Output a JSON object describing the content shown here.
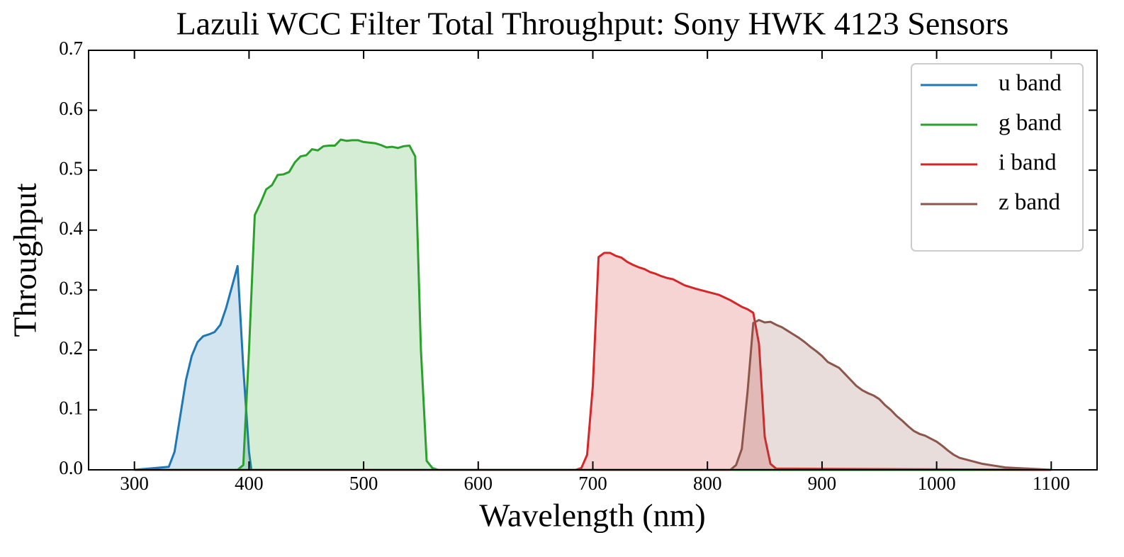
{
  "chart_data": {
    "type": "line",
    "title": "Lazuli WCC Filter Total Throughput: Sony HWK 4123 Sensors",
    "x_label": "Wavelength (nm)",
    "y_label": "Throughput",
    "xlim": [
      260,
      1140
    ],
    "ylim": [
      0,
      0.7
    ],
    "xticks": [
      300,
      400,
      500,
      600,
      700,
      800,
      900,
      1000,
      1100
    ],
    "yticks": [
      {
        "value": 0,
        "label": "0.0"
      },
      0.1,
      0.2,
      0.3,
      0.4,
      0.5,
      0.6,
      0.7
    ],
    "fill": true,
    "legend": "upper right",
    "series": [
      {
        "name": "u band",
        "color": "#1f77b4",
        "x": [
          300,
          330,
          335,
          340,
          345,
          350,
          355,
          360,
          365,
          370,
          375,
          380,
          385,
          390,
          395,
          400,
          402
        ],
        "values": [
          0,
          0.005,
          0.03,
          0.09,
          0.15,
          0.19,
          0.213,
          0.223,
          0.226,
          0.23,
          0.242,
          0.27,
          0.305,
          0.34,
          0.17,
          0.03,
          0
        ]
      },
      {
        "name": "g band",
        "color": "#2ca02c",
        "x": [
          300,
          390,
          395,
          400,
          405,
          410,
          415,
          420,
          425,
          430,
          435,
          440,
          445,
          450,
          455,
          460,
          465,
          470,
          475,
          480,
          485,
          490,
          495,
          500,
          505,
          510,
          515,
          520,
          525,
          530,
          535,
          540,
          545,
          550,
          555,
          560,
          565,
          1100
        ],
        "values": [
          0,
          0,
          0.008,
          0.2,
          0.425,
          0.445,
          0.468,
          0.475,
          0.492,
          0.493,
          0.497,
          0.513,
          0.523,
          0.525,
          0.535,
          0.533,
          0.54,
          0.541,
          0.541,
          0.551,
          0.549,
          0.55,
          0.55,
          0.547,
          0.546,
          0.545,
          0.542,
          0.538,
          0.539,
          0.537,
          0.54,
          0.541,
          0.523,
          0.2,
          0.015,
          0.003,
          0,
          0
        ]
      },
      {
        "name": "i band",
        "color": "#d62728",
        "x": [
          300,
          685,
          690,
          695,
          700,
          705,
          710,
          715,
          720,
          725,
          730,
          735,
          740,
          745,
          750,
          755,
          760,
          765,
          770,
          775,
          780,
          790,
          800,
          810,
          820,
          830,
          835,
          840,
          845,
          850,
          855,
          860,
          1100
        ],
        "values": [
          0,
          0,
          0.003,
          0.025,
          0.14,
          0.355,
          0.362,
          0.362,
          0.357,
          0.354,
          0.347,
          0.342,
          0.338,
          0.335,
          0.33,
          0.327,
          0.323,
          0.32,
          0.318,
          0.313,
          0.308,
          0.302,
          0.297,
          0.292,
          0.283,
          0.272,
          0.268,
          0.262,
          0.21,
          0.055,
          0.01,
          0.002,
          0
        ]
      },
      {
        "name": "z band",
        "color": "#8c564b",
        "x": [
          300,
          820,
          825,
          830,
          835,
          840,
          845,
          850,
          855,
          860,
          865,
          870,
          875,
          880,
          885,
          890,
          895,
          900,
          905,
          910,
          915,
          920,
          925,
          930,
          935,
          940,
          945,
          950,
          955,
          960,
          965,
          970,
          975,
          980,
          985,
          990,
          995,
          1000,
          1005,
          1010,
          1015,
          1020,
          1030,
          1040,
          1050,
          1060,
          1070,
          1080,
          1100
        ],
        "values": [
          0,
          0,
          0.008,
          0.035,
          0.13,
          0.245,
          0.25,
          0.246,
          0.247,
          0.242,
          0.238,
          0.232,
          0.226,
          0.22,
          0.213,
          0.205,
          0.198,
          0.19,
          0.18,
          0.175,
          0.17,
          0.16,
          0.15,
          0.14,
          0.133,
          0.128,
          0.124,
          0.118,
          0.108,
          0.1,
          0.09,
          0.082,
          0.073,
          0.065,
          0.06,
          0.057,
          0.052,
          0.047,
          0.04,
          0.032,
          0.025,
          0.02,
          0.015,
          0.01,
          0.007,
          0.004,
          0.003,
          0.002,
          0
        ]
      }
    ]
  }
}
